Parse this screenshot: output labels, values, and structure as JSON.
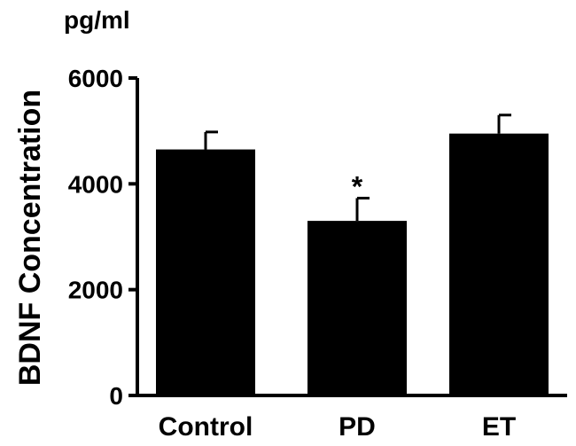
{
  "chart_data": {
    "type": "bar",
    "title": "",
    "ylabel": "BDNF Concentration",
    "unit": "pg/ml",
    "categories": [
      "Control",
      "PD",
      "ET"
    ],
    "values": [
      4650,
      3300,
      4950
    ],
    "errors": [
      330,
      430,
      350
    ],
    "annotations": [
      "",
      "*",
      ""
    ],
    "ylim": [
      0,
      6000
    ],
    "yticks": [
      0,
      2000,
      4000,
      6000
    ],
    "ytick_labels": [
      "0",
      "2000",
      "4000",
      "6000"
    ],
    "grid": false,
    "bar_color": "#000000"
  }
}
